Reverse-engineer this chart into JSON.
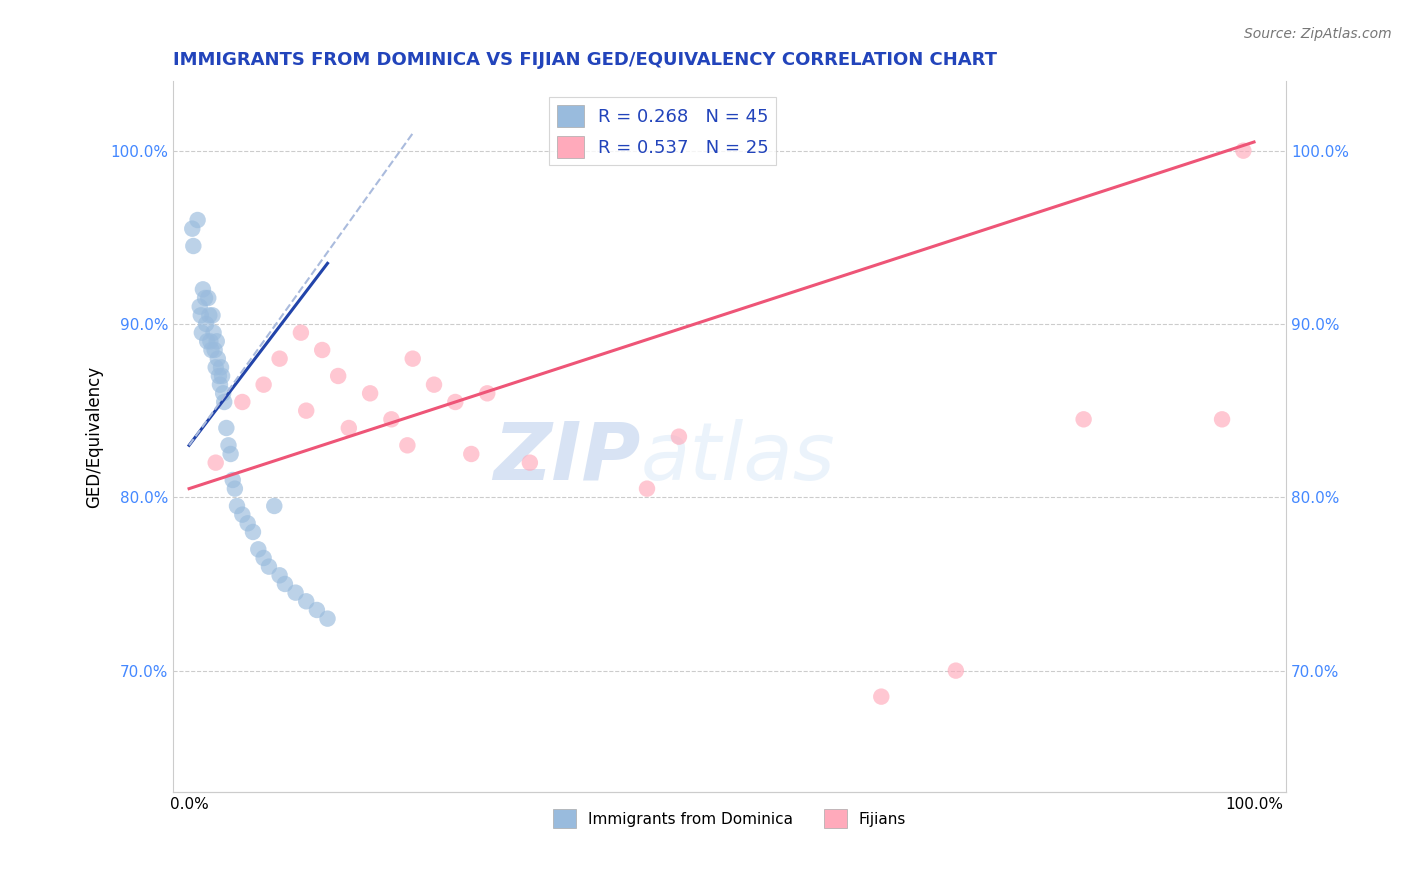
{
  "title": "IMMIGRANTS FROM DOMINICA VS FIJIAN GED/EQUIVALENCY CORRELATION CHART",
  "source": "Source: ZipAtlas.com",
  "ylabel": "GED/Equivalency",
  "legend_entry1": "R = 0.268   N = 45",
  "legend_entry2": "R = 0.537   N = 25",
  "legend_label1": "Immigrants from Dominica",
  "legend_label2": "Fijians",
  "blue_color": "#99bbdd",
  "pink_color": "#ffaabb",
  "blue_line_color": "#2244aa",
  "blue_dash_color": "#aabbdd",
  "pink_line_color": "#ee5577",
  "watermark_zip": "ZIP",
  "watermark_atlas": "atlas",
  "title_color": "#2244bb",
  "ytick_color": "#4488ff",
  "blue_scatter_x": [
    0.3,
    0.4,
    0.8,
    1.0,
    1.1,
    1.2,
    1.3,
    1.5,
    1.6,
    1.7,
    1.8,
    1.9,
    2.0,
    2.1,
    2.2,
    2.3,
    2.4,
    2.5,
    2.6,
    2.7,
    2.8,
    2.9,
    3.0,
    3.1,
    3.2,
    3.3,
    3.5,
    3.7,
    3.9,
    4.1,
    4.3,
    4.5,
    5.0,
    5.5,
    6.0,
    6.5,
    7.0,
    7.5,
    8.0,
    8.5,
    9.0,
    10.0,
    11.0,
    12.0,
    13.0
  ],
  "blue_scatter_y": [
    95.5,
    94.5,
    96.0,
    91.0,
    90.5,
    89.5,
    92.0,
    91.5,
    90.0,
    89.0,
    91.5,
    90.5,
    89.0,
    88.5,
    90.5,
    89.5,
    88.5,
    87.5,
    89.0,
    88.0,
    87.0,
    86.5,
    87.5,
    87.0,
    86.0,
    85.5,
    84.0,
    83.0,
    82.5,
    81.0,
    80.5,
    79.5,
    79.0,
    78.5,
    78.0,
    77.0,
    76.5,
    76.0,
    79.5,
    75.5,
    75.0,
    74.5,
    74.0,
    73.5,
    73.0
  ],
  "pink_scatter_x": [
    2.5,
    5.0,
    7.0,
    8.5,
    10.5,
    11.0,
    12.5,
    14.0,
    15.0,
    17.0,
    19.0,
    20.5,
    21.0,
    23.0,
    25.0,
    26.5,
    28.0,
    32.0,
    43.0,
    46.0,
    65.0,
    72.0,
    84.0,
    97.0,
    99.0
  ],
  "pink_scatter_y": [
    82.0,
    85.5,
    86.5,
    88.0,
    89.5,
    85.0,
    88.5,
    87.0,
    84.0,
    86.0,
    84.5,
    83.0,
    88.0,
    86.5,
    85.5,
    82.5,
    86.0,
    82.0,
    80.5,
    83.5,
    68.5,
    70.0,
    84.5,
    84.5,
    100.0
  ],
  "ylim_min": 63.0,
  "ylim_max": 104.0,
  "xlim_min": -1.5,
  "xlim_max": 103.0,
  "ytick_values": [
    70.0,
    80.0,
    90.0,
    100.0
  ],
  "pink_line_x0": 0.0,
  "pink_line_y0": 80.5,
  "pink_line_x1": 100.0,
  "pink_line_y1": 100.5,
  "blue_line_x0": 0.0,
  "blue_line_y0": 83.0,
  "blue_line_x1": 13.0,
  "blue_line_y1": 93.5,
  "blue_dash_x0": 0.0,
  "blue_dash_y0": 83.0,
  "blue_dash_x1": 21.0,
  "blue_dash_y1": 101.0,
  "background_color": "#ffffff"
}
